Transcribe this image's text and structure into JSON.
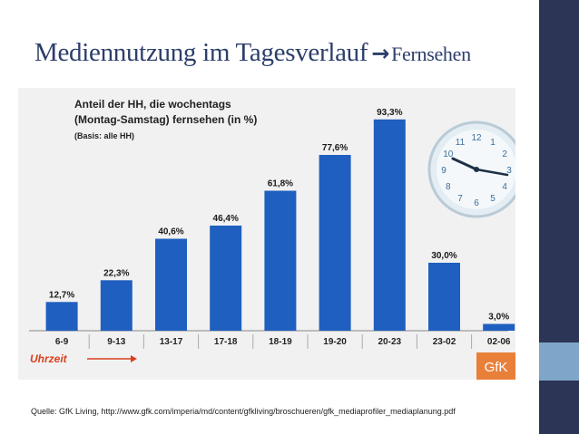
{
  "slide": {
    "title_main": "Mediennutzung im Tagesverlauf",
    "title_arrow": "→",
    "title_sub": "Fernsehen",
    "source": "Quelle: GfK Living, http://www.gfk.com/imperia/md/content/gfkliving/broschueren/gfk_mediaprofiler_mediaplanung.pdf"
  },
  "chart_data": {
    "type": "bar",
    "title_lines": [
      "Anteil der HH, die wochentags",
      "(Montag-Samstag) fernsehen (in %)"
    ],
    "subtitle": "(Basis: alle HH)",
    "categories": [
      "6-9",
      "9-13",
      "13-17",
      "17-18",
      "18-19",
      "19-20",
      "20-23",
      "23-02",
      "02-06"
    ],
    "values": [
      12.7,
      22.3,
      40.6,
      46.4,
      61.8,
      77.6,
      93.3,
      30.0,
      3.0
    ],
    "value_labels": [
      "12,7%",
      "22,3%",
      "40,6%",
      "46,4%",
      "61,8%",
      "77,6%",
      "93,3%",
      "30,0%",
      "3,0%"
    ],
    "xlabel": "Uhrzeit",
    "ylabel": "",
    "ylim": [
      0,
      100
    ],
    "bar_color": "#1f5fbf",
    "label_color": "#1a1a1a",
    "xlabel_color": "#d9411e",
    "logo_text": "GfK",
    "logo_color": "#e8803a",
    "clock_numerals": [
      "12",
      "3",
      "6",
      "9",
      "10",
      "11",
      "1",
      "2",
      "4",
      "5",
      "7",
      "8"
    ]
  },
  "colors": {
    "title": "#2c3e6b",
    "sidebar": "#2c3556",
    "sidebar_accent": "#7fa5c9"
  }
}
